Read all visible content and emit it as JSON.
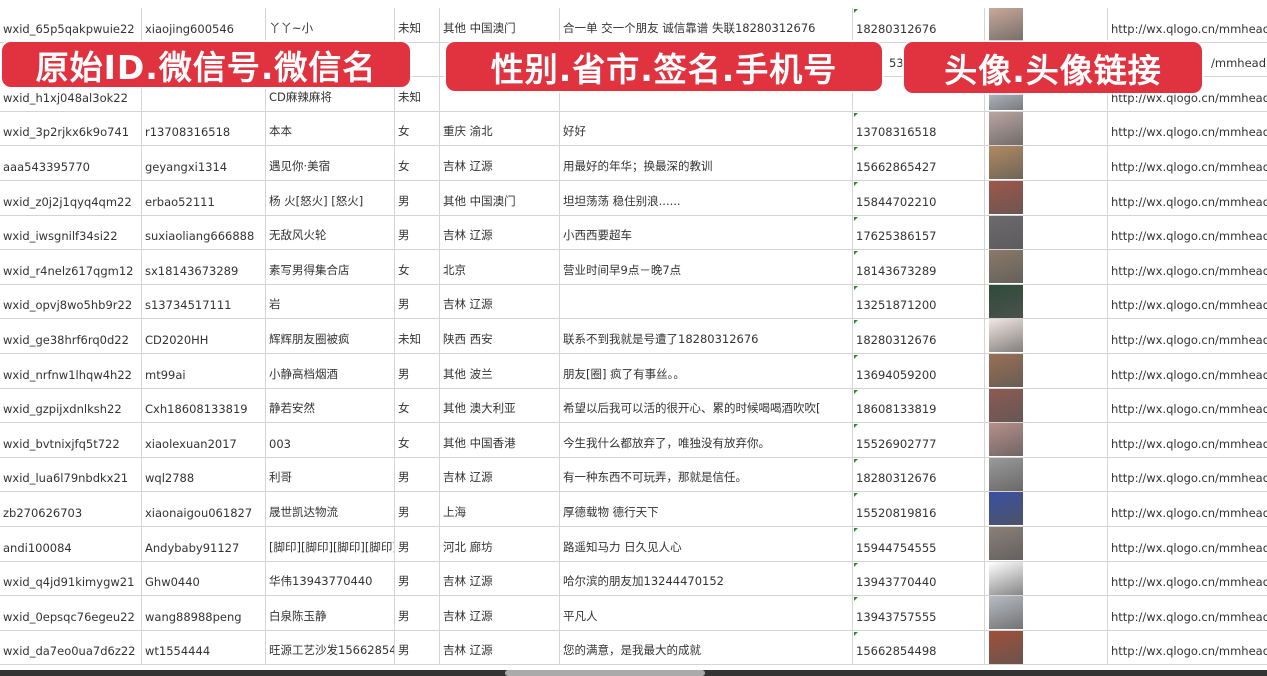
{
  "overlay_labels": [
    "原始ID.微信号.微信名",
    "性别.省市.签名.手机号",
    "头像.头像链接"
  ],
  "accent_color": "#e1323f",
  "rows": [
    {
      "id": "wxid_65p5qakpwuie22",
      "wechat": "xiaojing600546",
      "name": "丫丫~小",
      "gender": "未知",
      "region": "其他 中国澳门",
      "signature": "合一单 交一个朋友 诚信靠谱 失联18280312676",
      "phone": "18280312676",
      "avatar_color": "#c9a99a",
      "url": "http://wx.qlogo.cn/mmhead"
    },
    {
      "id": "",
      "wechat": "",
      "name": "",
      "gender": "",
      "region": "",
      "signature": "",
      "phone": "5386",
      "avatar_color": "#7a8fb0",
      "url": "/mmhead"
    },
    {
      "id": "wxid_h1xj048al3ok22",
      "wechat": "",
      "name": "CD麻辣麻将",
      "gender": "未知",
      "region": "",
      "signature": "",
      "phone": "",
      "avatar_color": "#cfd6e0",
      "url": "http://wx.qlogo.cn/mmhead"
    },
    {
      "id": "wxid_3p2rjkx6k9o741",
      "wechat": "r13708316518",
      "name": "本本",
      "gender": "女",
      "region": "重庆 渝北",
      "signature": "好好",
      "phone": "13708316518",
      "avatar_color": "#b9a5a0",
      "url": "http://wx.qlogo.cn/mmhead"
    },
    {
      "id": "aaa543395770",
      "wechat": "geyangxi1314",
      "name": "遇见你·美宿",
      "gender": "女",
      "region": "吉林 辽源",
      "signature": "用最好的年华；换最深的教训",
      "phone": "15662865427",
      "avatar_color": "#b08a62",
      "url": "http://wx.qlogo.cn/mmhead"
    },
    {
      "id": "wxid_z0j2j1qyq4qm22",
      "wechat": "erbao52111",
      "name": "杨 火[怒火] [怒火]",
      "gender": "男",
      "region": "其他 中国澳门",
      "signature": "坦坦荡荡 稳住别浪......",
      "phone": "15844702210",
      "avatar_color": "#a0574a",
      "url": "http://wx.qlogo.cn/mmhead"
    },
    {
      "id": "wxid_iwsgnilf34si22",
      "wechat": "suxiaoliang666888",
      "name": "无敌风火轮",
      "gender": "男",
      "region": "吉林 辽源",
      "signature": "小西西要超车",
      "phone": "17625386157",
      "avatar_color": "#6d6a6e",
      "url": "http://wx.qlogo.cn/mmhead"
    },
    {
      "id": "wxid_r4nelz617qgm12",
      "wechat": "sx18143673289",
      "name": "素写男得集合店",
      "gender": "女",
      "region": "北京",
      "signature": "营业时间早9点－晚7点",
      "phone": "18143673289",
      "avatar_color": "#8b7a68",
      "url": "http://wx.qlogo.cn/mmhead"
    },
    {
      "id": "wxid_opvj8wo5hb9r22",
      "wechat": "s13734517111",
      "name": "岩",
      "gender": "男",
      "region": "吉林 辽源",
      "signature": "",
      "phone": "13251871200",
      "avatar_color": "#2f4a3a",
      "url": "http://wx.qlogo.cn/mmhead"
    },
    {
      "id": "wxid_ge38hrf6rq0d22",
      "wechat": "CD2020HH",
      "name": "辉辉朋友圈被疯",
      "gender": "未知",
      "region": "陕西 西安",
      "signature": "联系不到我就是号遭了18280312676",
      "phone": "18280312676",
      "avatar_color": "#f1e6e2",
      "url": "http://wx.qlogo.cn/mmhead"
    },
    {
      "id": "wxid_nrfnw1lhqw4h22",
      "wechat": "mt99ai",
      "name": "小静高档烟酒",
      "gender": "男",
      "region": "其他 波兰",
      "signature": "朋友[圈] 疯了有事丝。。",
      "phone": "13694059200",
      "avatar_color": "#9a6f55",
      "url": "http://wx.qlogo.cn/mmhead"
    },
    {
      "id": "wxid_gzpijxdnlksh22",
      "wechat": "Cxh18608133819",
      "name": "静若安然",
      "gender": "女",
      "region": "其他 澳大利亚",
      "signature": "希望以后我可以活的很开心、累的时候喝喝酒吹吹[",
      "phone": "18608133819",
      "avatar_color": "#8e5a52",
      "url": "http://wx.qlogo.cn/mmhead"
    },
    {
      "id": "wxid_bvtnixjfq5t722",
      "wechat": "xiaolexuan2017",
      "name": "003",
      "gender": "女",
      "region": "其他 中国香港",
      "signature": "今生我什么都放弃了，唯独没有放弃你。",
      "phone": "15526902777",
      "avatar_color": "#b5908a",
      "url": "http://wx.qlogo.cn/mmhead"
    },
    {
      "id": "wxid_lua6l79nbdkx21",
      "wechat": "wql2788",
      "name": "利哥",
      "gender": "男",
      "region": "吉林 辽源",
      "signature": "有一种东西不可玩弄，那就是信任。",
      "phone": "18280312676",
      "avatar_color": "#9a9a9a",
      "url": "http://wx.qlogo.cn/mmhead"
    },
    {
      "id": "zb270626703",
      "wechat": "xiaonaigou061827",
      "name": "晟世凯达物流",
      "gender": "男",
      "region": "上海",
      "signature": "厚德载物 德行天下",
      "phone": "15520819816",
      "avatar_color": "#3a4fa0",
      "url": "http://wx.qlogo.cn/mmhead"
    },
    {
      "id": "andi100084",
      "wechat": "Andybaby91127",
      "name": "[脚印][脚印][脚印][脚印]",
      "gender": "男",
      "region": "河北 廊坊",
      "signature": "路遥知马力 日久见人心",
      "phone": "15944754555",
      "avatar_color": "#8a8078",
      "url": "http://wx.qlogo.cn/mmhead"
    },
    {
      "id": "wxid_q4jd91kimygw21",
      "wechat": "Ghw0440",
      "name": "华伟13943770440",
      "gender": "男",
      "region": "吉林 辽源",
      "signature": "哈尔滨的朋友加13244470152",
      "phone": "13943770440",
      "avatar_color": "#ffffff",
      "url": "http://wx.qlogo.cn/mmhead"
    },
    {
      "id": "wxid_0epsqc76egeu22",
      "wechat": "wang88988peng",
      "name": "白泉陈玉静",
      "gender": "男",
      "region": "吉林 辽源",
      "signature": "平凡人",
      "phone": "13943757555",
      "avatar_color": "#b8bcc2",
      "url": "http://wx.qlogo.cn/mmhead"
    },
    {
      "id": "wxid_da7eo0ua7d6z22",
      "wechat": "wt1554444",
      "name": "旺源工艺沙发15662854",
      "gender": "男",
      "region": "吉林 辽源",
      "signature": "您的满意，是我最大的成就",
      "phone": "15662854498",
      "avatar_color": "#a0503a",
      "url": "http://wx.qlogo.cn/mmhead"
    }
  ]
}
